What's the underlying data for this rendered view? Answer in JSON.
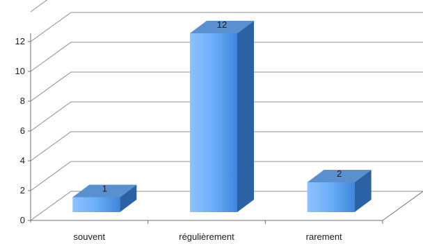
{
  "chart_data": {
    "type": "bar",
    "style": "3d-column",
    "categories": [
      "souvent",
      "régulièrement",
      "rarement"
    ],
    "values": [
      1,
      12,
      2
    ],
    "data_labels": [
      "1",
      "12",
      "2"
    ],
    "ylim": [
      0,
      12
    ],
    "yticks": [
      "0",
      "2",
      "4",
      "6",
      "8",
      "10",
      "12"
    ],
    "grid": true,
    "legend": "none",
    "bar_color_light": "#9fcbff",
    "bar_color_mid": "#4a95e6",
    "bar_color_dark": "#2f6db5",
    "bar_top_color": "#5a8fd0",
    "bar_side_color": "#2b62a6",
    "grid_color": "#8c8c8c"
  }
}
